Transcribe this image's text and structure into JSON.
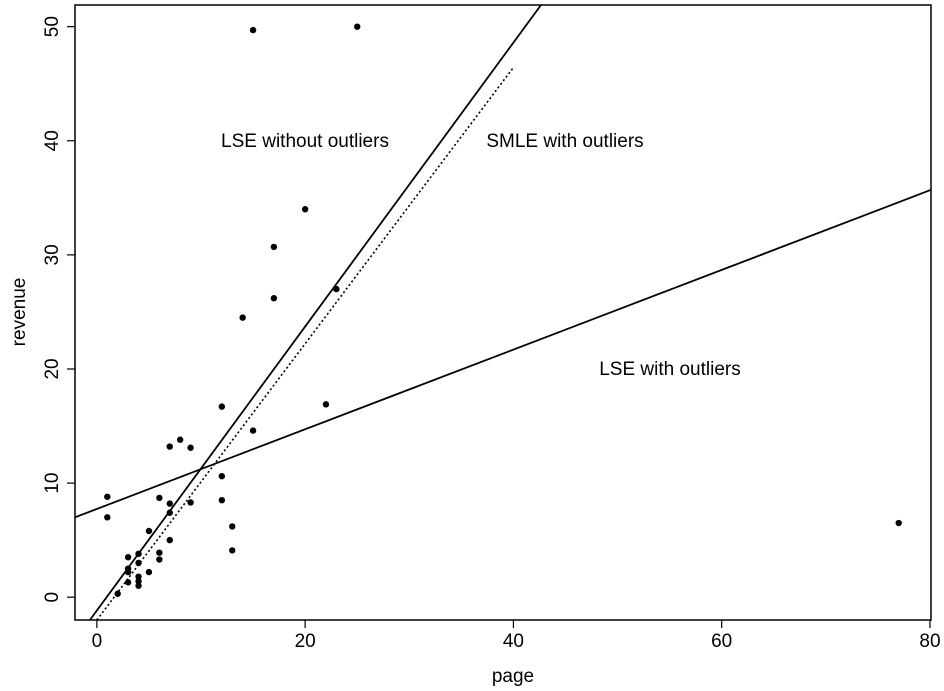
{
  "chart_data": {
    "type": "scatter",
    "x_label": "page",
    "y_label": "revenue",
    "xlim": [
      -2.1,
      80.1
    ],
    "ylim": [
      -2,
      51.9
    ],
    "xticks": [
      0,
      20,
      40,
      60,
      80
    ],
    "yticks": [
      0,
      10,
      20,
      30,
      40,
      50
    ],
    "grid": false,
    "series": [
      {
        "color": "#000000",
        "x": [
          1,
          1,
          2,
          3,
          3,
          3,
          3,
          4,
          4,
          4,
          4,
          4,
          5,
          5,
          6,
          6,
          6,
          7,
          7,
          7,
          7,
          8,
          9,
          9,
          12,
          12,
          12,
          13,
          13,
          14,
          15,
          15,
          17,
          17,
          20,
          22,
          23,
          25,
          77
        ],
        "values": [
          8.8,
          7,
          0.3,
          3.5,
          2.5,
          2.2,
          1.3,
          3.8,
          3,
          1.8,
          1.4,
          1,
          5.8,
          2.2,
          8.7,
          3.9,
          3.3,
          13.2,
          8.2,
          7.4,
          5,
          13.8,
          13.1,
          8.3,
          16.7,
          10.6,
          8.5,
          6.2,
          4.1,
          24.5,
          14.6,
          49.7,
          30.7,
          26.2,
          34,
          16.9,
          27,
          50,
          6.5
        ]
      }
    ],
    "lines": [
      {
        "name": "LSE without outliers",
        "style": "solid",
        "color": "#000000",
        "x": [
          -0.67,
          42.65
        ],
        "y": [
          -2,
          51.9
        ]
      },
      {
        "name": "SMLE with outliers",
        "style": "dotted",
        "color": "#000000",
        "x": [
          0,
          40.06
        ],
        "y": [
          -2,
          46.5
        ]
      },
      {
        "name": "LSE with outliers",
        "style": "solid",
        "color": "#000000",
        "x": [
          -2.1,
          80.1
        ],
        "y": [
          7.0,
          35.7
        ]
      }
    ]
  }
}
